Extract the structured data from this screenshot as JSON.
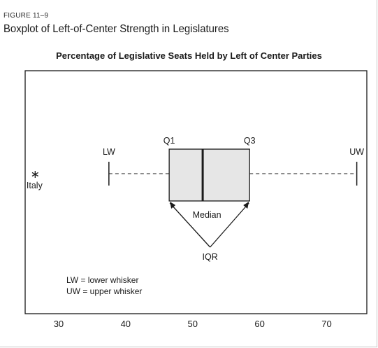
{
  "figure": {
    "label": "FIGURE 11–9",
    "title": "Boxplot of Left-of-Center Strength in Legislatures"
  },
  "chart_data": {
    "type": "boxplot",
    "title": "Percentage of Legislative Seats Held by Left of Center Parties",
    "xlim": [
      25,
      76
    ],
    "xticks": [
      30,
      40,
      50,
      60,
      70
    ],
    "grid": false,
    "orientation": "horizontal",
    "box": {
      "lower_whisker": 37.5,
      "q1": 46.5,
      "median": 51.5,
      "q3": 58.5,
      "upper_whisker": 74.5
    },
    "outliers": [
      {
        "label": "Italy",
        "value": 26.5
      }
    ],
    "labels": {
      "lw": "LW",
      "q1": "Q1",
      "q3": "Q3",
      "uw": "UW",
      "median": "Median",
      "iqr": "IQR"
    },
    "notes": [
      "LW = lower whisker",
      "UW = upper whisker"
    ],
    "colors": {
      "box_fill": "#e6e6e6",
      "ink": "#1a1a1a"
    }
  }
}
